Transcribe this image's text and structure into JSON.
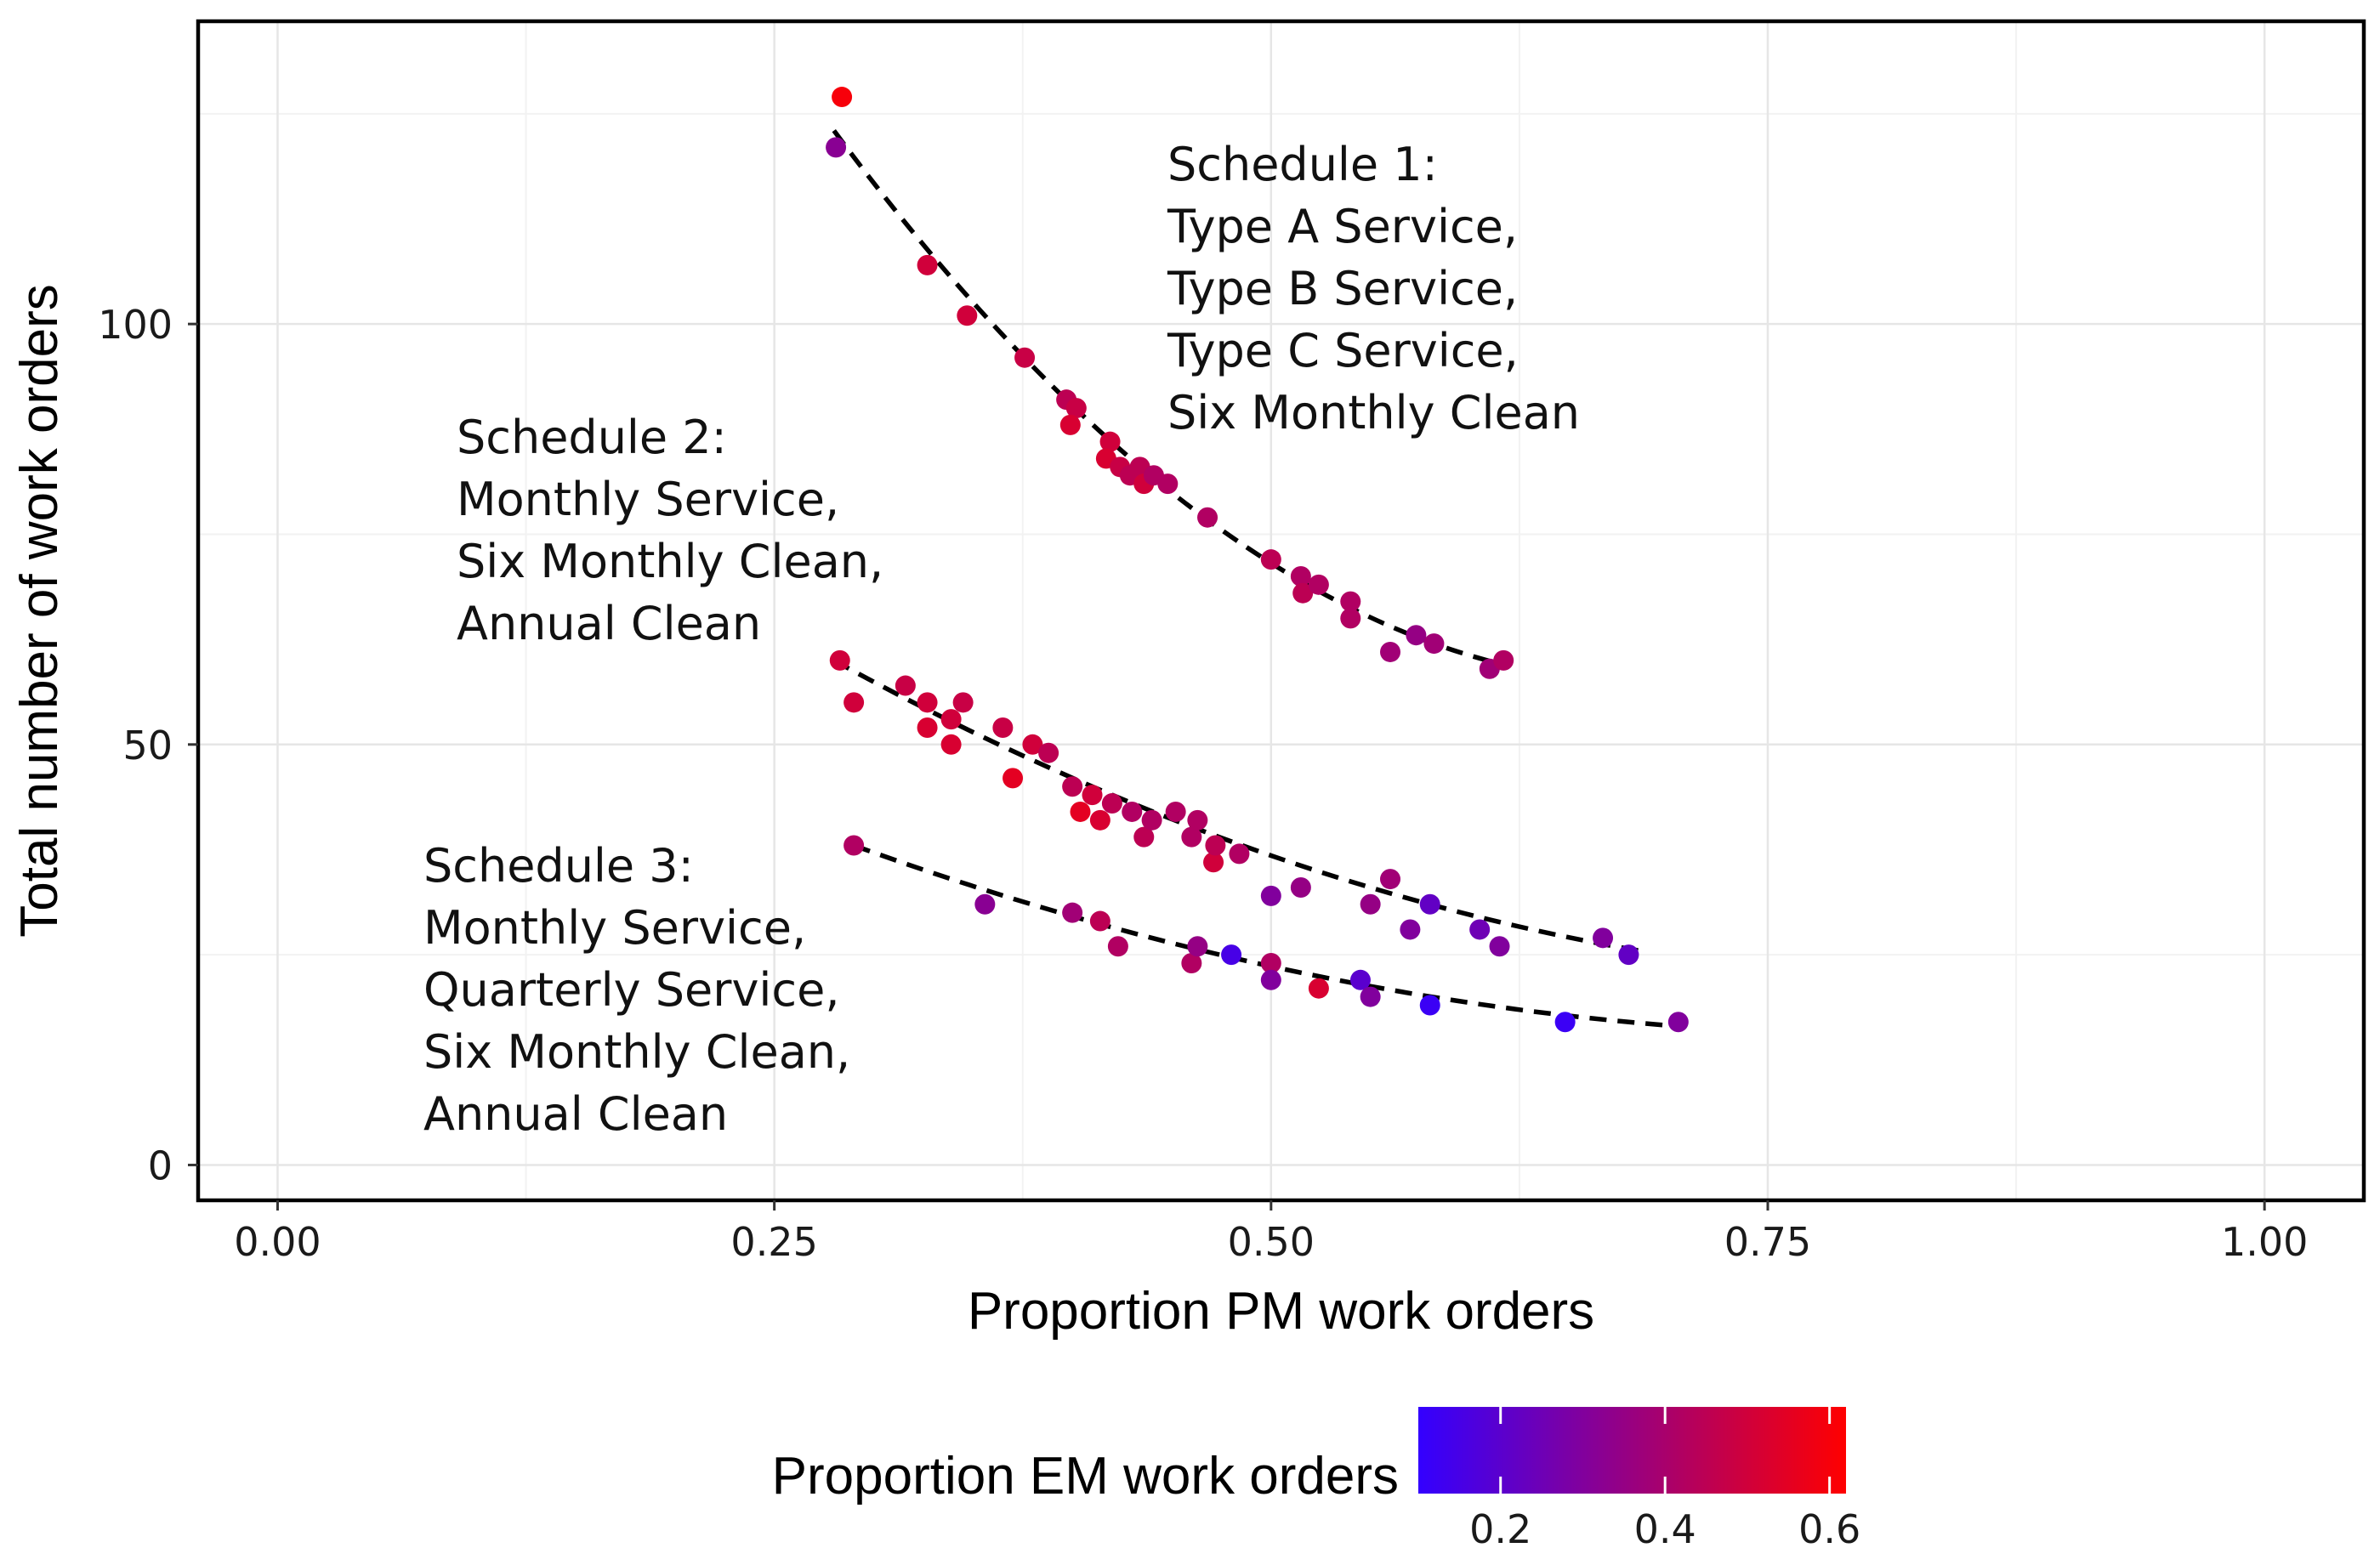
{
  "chart_data": {
    "type": "scatter",
    "xlabel": "Proportion PM work orders",
    "ylabel": "Total number of work orders",
    "xlim": [
      -0.04,
      1.05
    ],
    "ylim": [
      -4.2,
      136
    ],
    "x_ticks": [
      0.0,
      0.25,
      0.5,
      0.75,
      1.0
    ],
    "x_tick_labels": [
      "0.00",
      "0.25",
      "0.50",
      "0.75",
      "1.00"
    ],
    "y_ticks": [
      0,
      50,
      100
    ],
    "y_tick_labels": [
      "0",
      "50",
      "100"
    ],
    "grid": true,
    "color_scale": {
      "title": "Proportion EM work orders",
      "min": 0.1,
      "max": 0.62,
      "low_color": "#3300ff",
      "high_color": "#ff0000",
      "ticks": [
        0.2,
        0.4,
        0.6
      ],
      "tick_labels": [
        "0.2",
        "0.4",
        "0.6"
      ]
    },
    "series": [
      {
        "name": "Schedule 1",
        "annotation": [
          "Schedule 1:",
          "Type A Service,",
          "Type B Service,",
          "Type C Service,",
          "Six Monthly Clean"
        ],
        "trend": {
          "x0": 0.28,
          "y0": 123,
          "x1": 0.617,
          "y1": 59.5,
          "curvature": 11
        },
        "points": [
          {
            "x": 0.284,
            "y": 127,
            "em": 0.6
          },
          {
            "x": 0.281,
            "y": 121,
            "em": 0.32
          },
          {
            "x": 0.327,
            "y": 107,
            "em": 0.5
          },
          {
            "x": 0.347,
            "y": 101,
            "em": 0.5
          },
          {
            "x": 0.376,
            "y": 96,
            "em": 0.48
          },
          {
            "x": 0.397,
            "y": 91,
            "em": 0.45
          },
          {
            "x": 0.402,
            "y": 90,
            "em": 0.48
          },
          {
            "x": 0.399,
            "y": 88,
            "em": 0.52
          },
          {
            "x": 0.419,
            "y": 86,
            "em": 0.5
          },
          {
            "x": 0.417,
            "y": 84,
            "em": 0.52
          },
          {
            "x": 0.424,
            "y": 83,
            "em": 0.48
          },
          {
            "x": 0.429,
            "y": 82,
            "em": 0.45
          },
          {
            "x": 0.434,
            "y": 83,
            "em": 0.45
          },
          {
            "x": 0.436,
            "y": 81,
            "em": 0.5
          },
          {
            "x": 0.441,
            "y": 82,
            "em": 0.42
          },
          {
            "x": 0.448,
            "y": 81,
            "em": 0.42
          },
          {
            "x": 0.468,
            "y": 77,
            "em": 0.42
          },
          {
            "x": 0.5,
            "y": 72,
            "em": 0.45
          },
          {
            "x": 0.515,
            "y": 70,
            "em": 0.42
          },
          {
            "x": 0.516,
            "y": 68,
            "em": 0.45
          },
          {
            "x": 0.524,
            "y": 69,
            "em": 0.42
          },
          {
            "x": 0.54,
            "y": 67,
            "em": 0.42
          },
          {
            "x": 0.54,
            "y": 65,
            "em": 0.42
          },
          {
            "x": 0.56,
            "y": 61,
            "em": 0.38
          },
          {
            "x": 0.573,
            "y": 63,
            "em": 0.35
          },
          {
            "x": 0.582,
            "y": 62,
            "em": 0.38
          },
          {
            "x": 0.61,
            "y": 59,
            "em": 0.38
          },
          {
            "x": 0.617,
            "y": 60,
            "em": 0.42
          }
        ]
      },
      {
        "name": "Schedule 2",
        "annotation": [
          "Schedule 2:",
          "Monthly Service,",
          "Six Monthly Clean,",
          "Annual Clean"
        ],
        "trend": {
          "x0": 0.28,
          "y0": 60,
          "x1": 0.685,
          "y1": 25.5,
          "curvature": 4.5
        },
        "points": [
          {
            "x": 0.283,
            "y": 60,
            "em": 0.5
          },
          {
            "x": 0.29,
            "y": 55,
            "em": 0.5
          },
          {
            "x": 0.316,
            "y": 57,
            "em": 0.48
          },
          {
            "x": 0.327,
            "y": 55,
            "em": 0.5
          },
          {
            "x": 0.327,
            "y": 52,
            "em": 0.52
          },
          {
            "x": 0.339,
            "y": 53,
            "em": 0.5
          },
          {
            "x": 0.339,
            "y": 50,
            "em": 0.52
          },
          {
            "x": 0.345,
            "y": 55,
            "em": 0.48
          },
          {
            "x": 0.365,
            "y": 52,
            "em": 0.48
          },
          {
            "x": 0.37,
            "y": 46,
            "em": 0.55
          },
          {
            "x": 0.38,
            "y": 50,
            "em": 0.5
          },
          {
            "x": 0.388,
            "y": 49,
            "em": 0.45
          },
          {
            "x": 0.4,
            "y": 45,
            "em": 0.45
          },
          {
            "x": 0.404,
            "y": 42,
            "em": 0.55
          },
          {
            "x": 0.41,
            "y": 44,
            "em": 0.5
          },
          {
            "x": 0.414,
            "y": 41,
            "em": 0.52
          },
          {
            "x": 0.42,
            "y": 43,
            "em": 0.45
          },
          {
            "x": 0.43,
            "y": 42,
            "em": 0.42
          },
          {
            "x": 0.436,
            "y": 39,
            "em": 0.45
          },
          {
            "x": 0.44,
            "y": 41,
            "em": 0.42
          },
          {
            "x": 0.452,
            "y": 42,
            "em": 0.42
          },
          {
            "x": 0.46,
            "y": 39,
            "em": 0.42
          },
          {
            "x": 0.463,
            "y": 41,
            "em": 0.42
          },
          {
            "x": 0.471,
            "y": 36,
            "em": 0.5
          },
          {
            "x": 0.472,
            "y": 38,
            "em": 0.45
          },
          {
            "x": 0.484,
            "y": 37,
            "em": 0.42
          },
          {
            "x": 0.5,
            "y": 32,
            "em": 0.3
          },
          {
            "x": 0.515,
            "y": 33,
            "em": 0.35
          },
          {
            "x": 0.56,
            "y": 34,
            "em": 0.38
          },
          {
            "x": 0.55,
            "y": 31,
            "em": 0.35
          },
          {
            "x": 0.58,
            "y": 31,
            "em": 0.22
          },
          {
            "x": 0.57,
            "y": 28,
            "em": 0.3
          },
          {
            "x": 0.605,
            "y": 28,
            "em": 0.25
          },
          {
            "x": 0.615,
            "y": 26,
            "em": 0.3
          },
          {
            "x": 0.667,
            "y": 27,
            "em": 0.3
          },
          {
            "x": 0.68,
            "y": 25,
            "em": 0.22
          }
        ]
      },
      {
        "name": "Schedule 3",
        "annotation": [
          "Schedule 3:",
          "Monthly Service,",
          "Quarterly Service,",
          "Six Monthly Clean,",
          "Annual Clean"
        ],
        "trend": {
          "x0": 0.29,
          "y0": 38,
          "x1": 0.705,
          "y1": 16.5,
          "curvature": 3.5
        },
        "points": [
          {
            "x": 0.29,
            "y": 38,
            "em": 0.42
          },
          {
            "x": 0.356,
            "y": 31,
            "em": 0.32
          },
          {
            "x": 0.4,
            "y": 30,
            "em": 0.38
          },
          {
            "x": 0.414,
            "y": 29,
            "em": 0.45
          },
          {
            "x": 0.423,
            "y": 26,
            "em": 0.42
          },
          {
            "x": 0.46,
            "y": 24,
            "em": 0.42
          },
          {
            "x": 0.463,
            "y": 26,
            "em": 0.35
          },
          {
            "x": 0.48,
            "y": 25,
            "em": 0.15
          },
          {
            "x": 0.5,
            "y": 24,
            "em": 0.42
          },
          {
            "x": 0.5,
            "y": 22,
            "em": 0.3
          },
          {
            "x": 0.524,
            "y": 21,
            "em": 0.52
          },
          {
            "x": 0.545,
            "y": 22,
            "em": 0.2
          },
          {
            "x": 0.55,
            "y": 20,
            "em": 0.3
          },
          {
            "x": 0.58,
            "y": 19,
            "em": 0.12
          },
          {
            "x": 0.648,
            "y": 17,
            "em": 0.12
          },
          {
            "x": 0.705,
            "y": 17,
            "em": 0.3
          }
        ]
      }
    ]
  }
}
